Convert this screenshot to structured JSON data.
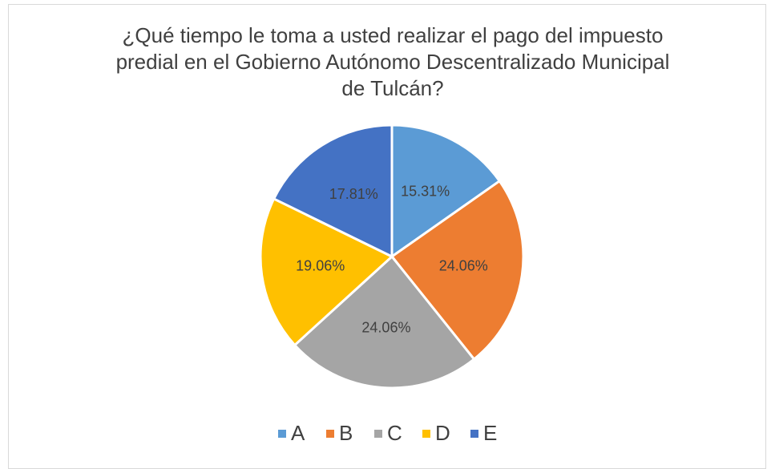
{
  "chart_data": {
    "type": "pie",
    "title": "¿Qué tiempo le toma a usted realizar el pago del impuesto predial en el Gobierno Autónomo Descentralizado Municipal de Tulcán?",
    "categories": [
      "A",
      "B",
      "C",
      "D",
      "E"
    ],
    "values": [
      15.31,
      24.06,
      24.06,
      19.06,
      17.81
    ],
    "value_labels": [
      "15.31%",
      "24.06%",
      "24.06%",
      "19.06%",
      "17.81%"
    ],
    "colors": [
      "#5b9bd5",
      "#ed7d31",
      "#a5a5a5",
      "#ffc000",
      "#4472c4"
    ],
    "legend": "bottom"
  }
}
